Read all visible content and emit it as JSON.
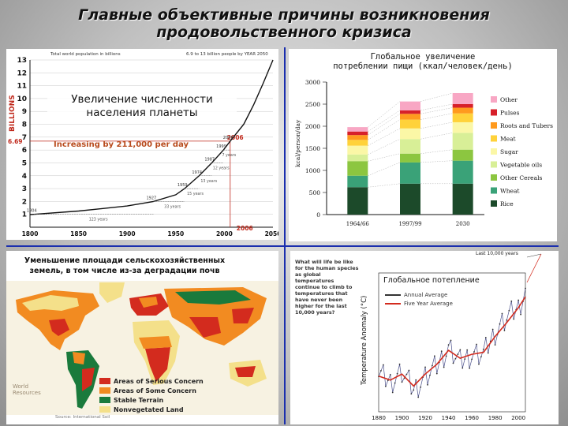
{
  "slide": {
    "title_line1": "Главные  объективные причины возникновения",
    "title_line2": "продовольственного кризиса"
  },
  "population": {
    "overlay_line1": "Увеличение численности",
    "overlay_line2": "населения планеты",
    "header": "Total world population in billions",
    "header2": "6.9 to 13 billion people by YEAR 2050",
    "y_label": "BILLIONS",
    "increasing": "Increasing by 211,000 per day",
    "marker_value": "6.69",
    "marker_year": "2006",
    "y_ticks": [
      "1",
      "2",
      "3",
      "4",
      "5",
      "6",
      "7",
      "8",
      "9",
      "10",
      "11",
      "12",
      "13"
    ],
    "x_ticks": [
      "1800",
      "1850",
      "1900",
      "1950",
      "2000",
      "2050"
    ],
    "year_labels": [
      "1804",
      "1927",
      "1959",
      "1974",
      "1987",
      "1999",
      "2006"
    ],
    "interval_labels": [
      "123 years",
      "33 years",
      "15 years",
      "13 years",
      "12 years",
      "7 years"
    ],
    "chart_data": {
      "type": "line",
      "x": [
        1800,
        1804,
        1850,
        1900,
        1927,
        1950,
        1959,
        1974,
        1987,
        1999,
        2006,
        2020,
        2030,
        2040,
        2050
      ],
      "y": [
        0.98,
        1.0,
        1.26,
        1.65,
        2.0,
        2.52,
        3.0,
        4.0,
        5.0,
        6.0,
        6.69,
        8.0,
        9.5,
        11.2,
        13.0
      ],
      "ylim": [
        0,
        13
      ],
      "xlim": [
        1800,
        2050
      ]
    }
  },
  "food": {
    "title_line1": "Глобальное увеличение",
    "title_line2": "потреблении пищи (ккал/человек/день)",
    "ylabel": "kcal/person/day",
    "chart_data": {
      "type": "bar",
      "stacked": true,
      "categories": [
        "1964/66",
        "1997/99",
        "2030"
      ],
      "ylim": [
        0,
        3000
      ],
      "yticks": [
        0,
        500,
        1000,
        1500,
        2000,
        2500,
        3000
      ],
      "series": [
        {
          "name": "Rice",
          "color": "#1c4a2a",
          "values": [
            620,
            700,
            700
          ]
        },
        {
          "name": "Wheat",
          "color": "#3aa278",
          "values": [
            260,
            480,
            520
          ]
        },
        {
          "name": "Other Cereals",
          "color": "#8cc640",
          "values": [
            330,
            200,
            250
          ]
        },
        {
          "name": "Vegetable oils",
          "color": "#d8ef97",
          "values": [
            150,
            330,
            380
          ]
        },
        {
          "name": "Sugar",
          "color": "#fbf7a6",
          "values": [
            200,
            240,
            240
          ]
        },
        {
          "name": "Meat",
          "color": "#ffd23a",
          "values": [
            130,
            200,
            200
          ]
        },
        {
          "name": "Roots and Tubers",
          "color": "#ff9a1e",
          "values": [
            110,
            130,
            130
          ]
        },
        {
          "name": "Pulses",
          "color": "#d7202a",
          "values": [
            80,
            80,
            80
          ]
        },
        {
          "name": "Other",
          "color": "#f8a7c4",
          "values": [
            100,
            200,
            250
          ]
        }
      ]
    }
  },
  "land": {
    "title_line1": "Уменьшение площади сельскохозяйственных",
    "title_line2": "земель, в том числе из-за деградации почв",
    "legend": [
      {
        "label": "Areas of Serious Concern",
        "color": "#d32b1e"
      },
      {
        "label": "Areas of Some Concern",
        "color": "#f28b21"
      },
      {
        "label": "Stable Terrain",
        "color": "#1a7a3c"
      },
      {
        "label": "Nonvegetated Land",
        "color": "#f4e08a"
      }
    ],
    "logo_line1": "World",
    "logo_line2": "Resources",
    "source": "Source: International Soil"
  },
  "warming": {
    "title": "Глобальное потепление",
    "question": "What will life be like for the human species as global temperatures continue to climb to temperatures that have never been higher for the last 10,000 years?",
    "last_years": "Last 10,000 years",
    "legend_annual": "Annual Average",
    "legend_five": "Five Year Average",
    "ylabel": "Temperature Anomaly (°C)",
    "x_ticks": [
      "1880",
      "1900",
      "1920",
      "1940",
      "1960",
      "1980",
      "2000"
    ],
    "chart_data": {
      "type": "line",
      "x": [
        1880,
        1890,
        1900,
        1910,
        1920,
        1930,
        1940,
        1950,
        1960,
        1970,
        1980,
        1990,
        2000,
        2006
      ],
      "series": [
        {
          "name": "Annual Average",
          "color": "#333333",
          "values": [
            -0.22,
            -0.3,
            -0.2,
            -0.38,
            -0.25,
            -0.14,
            0.05,
            -0.1,
            -0.02,
            -0.02,
            0.2,
            0.35,
            0.45,
            0.62
          ]
        },
        {
          "name": "Five Year Average",
          "color": "#d32b1e",
          "values": [
            -0.24,
            -0.28,
            -0.22,
            -0.34,
            -0.22,
            -0.12,
            0.02,
            -0.06,
            -0.02,
            0.0,
            0.16,
            0.3,
            0.45,
            0.56
          ]
        }
      ],
      "ylim": [
        -0.6,
        0.8
      ]
    }
  }
}
